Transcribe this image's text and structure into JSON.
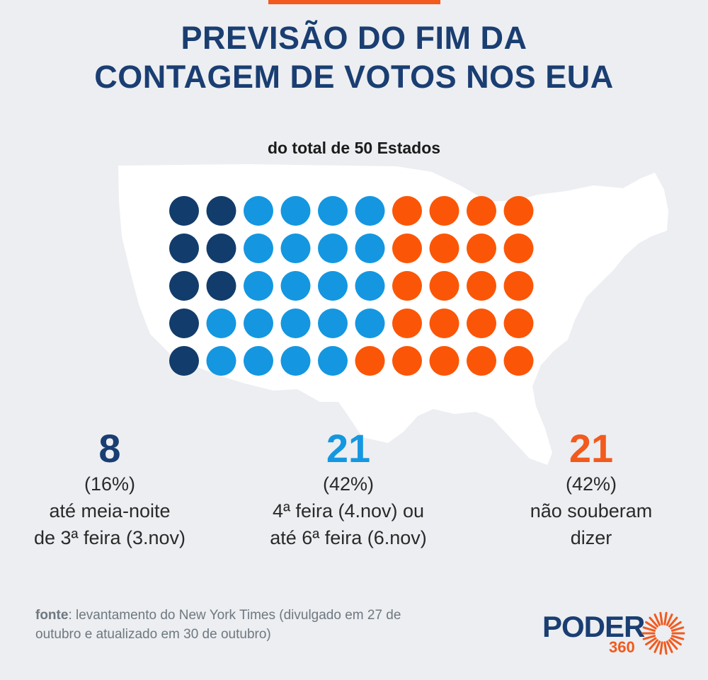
{
  "header": {
    "title_line1": "PREVISÃO DO FIM DA",
    "title_line2": "CONTAGEM DE VOTOS NOS EUA",
    "subtitle": "do total de 50 Estados"
  },
  "colors": {
    "background": "#ECEEF1",
    "accent": "#F25A1E",
    "title": "#1A3E72",
    "dark_blue": "#123C6B",
    "light_blue": "#1497E0",
    "orange": "#FB5607",
    "map_fill": "#FFFFFF"
  },
  "chart_data": {
    "type": "waffle",
    "total": 50,
    "rows": 5,
    "columns": 10,
    "fill_order": "column-major",
    "categories": [
      {
        "count": 8,
        "percent": "(16%)",
        "desc_line1": "até meia-noite",
        "desc_line2": "de 3ª feira (3.nov)",
        "color": "#123C6B"
      },
      {
        "count": 21,
        "percent": "(42%)",
        "desc_line1": "4ª feira (4.nov) ou",
        "desc_line2": "até 6ª feira (6.nov)",
        "color": "#1497E0"
      },
      {
        "count": 21,
        "percent": "(42%)",
        "desc_line1": "não souberam",
        "desc_line2": "dizer",
        "color": "#FB5607"
      }
    ]
  },
  "footer": {
    "source_label": "fonte",
    "source_text": ": levantamento do New York Times (divulgado em 27 de outubro e atualizado em 30 de outubro)"
  },
  "logo": {
    "word": "PODER",
    "number": "360",
    "icon": "sunburst-icon"
  }
}
